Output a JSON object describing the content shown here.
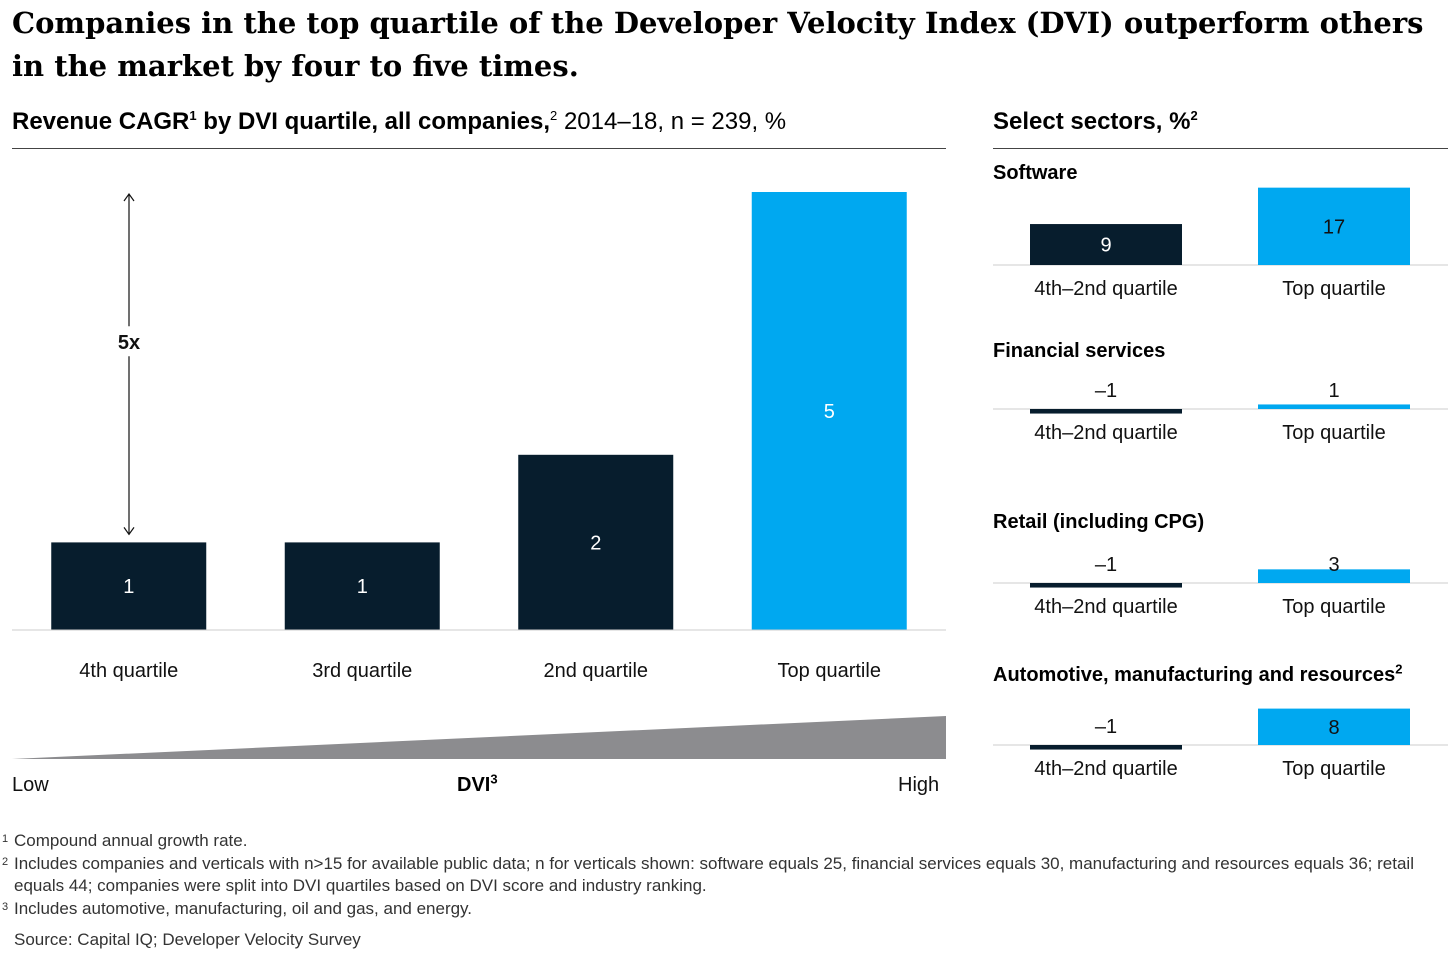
{
  "headline": "Companies in the top quartile of the Developer Velocity Index (DVI) outperform others in the market by four to five times.",
  "subtitle": {
    "bold": "Revenue CAGR",
    "bold_sup": "1",
    "bold_tail": " by DVI quartile, all companies,",
    "sup": "2",
    "rest": " 2014–18, n = 239, %"
  },
  "right_title": {
    "text": "Select sectors, %",
    "sup": "2"
  },
  "colors": {
    "dark": "#071D2D",
    "accent": "#00A8F0",
    "wedge": "#8C8C8F"
  },
  "chart_data": [
    {
      "type": "bar",
      "title": "Revenue CAGR by DVI quartile, all companies, 2014–18, n = 239, %",
      "categories": [
        "4th quartile",
        "3rd quartile",
        "2nd quartile",
        "Top quartile"
      ],
      "values": [
        1,
        1,
        2,
        5
      ],
      "value_labels": [
        "1",
        "1",
        "2",
        "5"
      ],
      "bar_colors": [
        "#071D2D",
        "#071D2D",
        "#071D2D",
        "#00A8F0"
      ],
      "annotation": "5x",
      "axis": {
        "low": "Low",
        "high": "High",
        "label": "DVI",
        "label_sup": "3"
      }
    },
    {
      "type": "bar",
      "title": "Software",
      "categories": [
        "4th–2nd quartile",
        "Top quartile"
      ],
      "values": [
        9,
        17
      ],
      "value_labels": [
        "9",
        "17"
      ]
    },
    {
      "type": "bar",
      "title": "Financial services",
      "categories": [
        "4th–2nd quartile",
        "Top quartile"
      ],
      "values": [
        -1,
        1
      ],
      "value_labels": [
        "–1",
        "1"
      ]
    },
    {
      "type": "bar",
      "title": "Retail (including CPG)",
      "categories": [
        "4th–2nd quartile",
        "Top quartile"
      ],
      "values": [
        -1,
        3
      ],
      "value_labels": [
        "–1",
        "3"
      ]
    },
    {
      "type": "bar",
      "title": "Automotive, manufacturing and resources",
      "title_sup": "2",
      "categories": [
        "4th–2nd quartile",
        "Top quartile"
      ],
      "values": [
        -1,
        8
      ],
      "value_labels": [
        "–1",
        "8"
      ]
    }
  ],
  "footnotes": [
    {
      "mark": "1",
      "text": "Compound annual growth rate."
    },
    {
      "mark": "2",
      "text": "Includes companies and verticals with n>15 for available public data; n for verticals shown: software equals 25, financial services equals 30, manufacturing and resources equals 36; retail equals 44; companies were split into DVI quartiles based on DVI score and industry ranking."
    },
    {
      "mark": "3",
      "text": "Includes automotive, manufacturing, oil and gas, and energy."
    }
  ],
  "source": "Source: Capital IQ; Developer Velocity Survey"
}
